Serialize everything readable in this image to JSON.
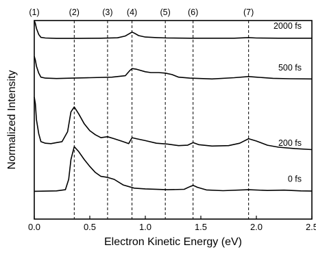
{
  "chart_data": {
    "type": "line",
    "xlabel": "Electron Kinetic Energy (eV)",
    "ylabel": "Normalized Intensity",
    "xlim": [
      0.0,
      2.5
    ],
    "x_ticks": [
      "0.0",
      "0.5",
      "1.0",
      "1.5",
      "2.0",
      "2.5"
    ],
    "x_tick_values": [
      0.0,
      0.5,
      1.0,
      1.5,
      2.0,
      2.5
    ],
    "y_ticks_shown": false,
    "grid": false,
    "peak_markers": [
      {
        "label": "(1)",
        "x": 0.0
      },
      {
        "label": "(2)",
        "x": 0.36
      },
      {
        "label": "(3)",
        "x": 0.66
      },
      {
        "label": "(4)",
        "x": 0.88
      },
      {
        "label": "(5)",
        "x": 1.18
      },
      {
        "label": "(6)",
        "x": 1.43
      },
      {
        "label": "(7)",
        "x": 1.93
      }
    ],
    "series": [
      {
        "name": "2000 fs",
        "baseline": 0.91,
        "points": [
          [
            0.0,
            1.0
          ],
          [
            0.01,
            0.985
          ],
          [
            0.02,
            0.96
          ],
          [
            0.04,
            0.93
          ],
          [
            0.06,
            0.915
          ],
          [
            0.1,
            0.912
          ],
          [
            0.2,
            0.91
          ],
          [
            0.4,
            0.91
          ],
          [
            0.6,
            0.911
          ],
          [
            0.75,
            0.913
          ],
          [
            0.82,
            0.922
          ],
          [
            0.86,
            0.935
          ],
          [
            0.88,
            0.942
          ],
          [
            0.9,
            0.937
          ],
          [
            0.94,
            0.924
          ],
          [
            1.0,
            0.917
          ],
          [
            1.1,
            0.914
          ],
          [
            1.2,
            0.912
          ],
          [
            1.4,
            0.911
          ],
          [
            1.6,
            0.911
          ],
          [
            1.8,
            0.911
          ],
          [
            1.93,
            0.914
          ],
          [
            2.0,
            0.912
          ],
          [
            2.2,
            0.911
          ],
          [
            2.5,
            0.911
          ]
        ]
      },
      {
        "name": "500 fs",
        "baseline": 0.7,
        "points": [
          [
            0.0,
            0.82
          ],
          [
            0.01,
            0.8
          ],
          [
            0.02,
            0.77
          ],
          [
            0.04,
            0.735
          ],
          [
            0.06,
            0.715
          ],
          [
            0.1,
            0.71
          ],
          [
            0.2,
            0.708
          ],
          [
            0.35,
            0.71
          ],
          [
            0.5,
            0.712
          ],
          [
            0.7,
            0.715
          ],
          [
            0.82,
            0.722
          ],
          [
            0.86,
            0.748
          ],
          [
            0.88,
            0.758
          ],
          [
            0.92,
            0.755
          ],
          [
            1.0,
            0.742
          ],
          [
            1.05,
            0.738
          ],
          [
            1.12,
            0.738
          ],
          [
            1.18,
            0.735
          ],
          [
            1.24,
            0.728
          ],
          [
            1.3,
            0.715
          ],
          [
            1.4,
            0.71
          ],
          [
            1.6,
            0.706
          ],
          [
            1.8,
            0.712
          ],
          [
            1.93,
            0.718
          ],
          [
            2.0,
            0.715
          ],
          [
            2.15,
            0.709
          ],
          [
            2.3,
            0.707
          ],
          [
            2.5,
            0.706
          ]
        ]
      },
      {
        "name": "200 fs",
        "baseline": 0.32,
        "points": [
          [
            0.0,
            0.615
          ],
          [
            0.01,
            0.58
          ],
          [
            0.02,
            0.5
          ],
          [
            0.04,
            0.43
          ],
          [
            0.06,
            0.39
          ],
          [
            0.1,
            0.382
          ],
          [
            0.15,
            0.38
          ],
          [
            0.2,
            0.385
          ],
          [
            0.25,
            0.39
          ],
          [
            0.3,
            0.44
          ],
          [
            0.33,
            0.54
          ],
          [
            0.36,
            0.565
          ],
          [
            0.4,
            0.53
          ],
          [
            0.45,
            0.48
          ],
          [
            0.5,
            0.445
          ],
          [
            0.55,
            0.425
          ],
          [
            0.6,
            0.41
          ],
          [
            0.66,
            0.415
          ],
          [
            0.72,
            0.405
          ],
          [
            0.8,
            0.39
          ],
          [
            0.85,
            0.38
          ],
          [
            0.88,
            0.41
          ],
          [
            0.92,
            0.405
          ],
          [
            1.0,
            0.395
          ],
          [
            1.1,
            0.382
          ],
          [
            1.2,
            0.378
          ],
          [
            1.3,
            0.37
          ],
          [
            1.38,
            0.372
          ],
          [
            1.43,
            0.385
          ],
          [
            1.48,
            0.375
          ],
          [
            1.6,
            0.368
          ],
          [
            1.75,
            0.37
          ],
          [
            1.85,
            0.382
          ],
          [
            1.93,
            0.405
          ],
          [
            2.0,
            0.393
          ],
          [
            2.1,
            0.372
          ],
          [
            2.2,
            0.362
          ],
          [
            2.35,
            0.355
          ],
          [
            2.5,
            0.35
          ]
        ]
      },
      {
        "name": "0 fs",
        "baseline": 0.14,
        "points": [
          [
            0.0,
            0.14
          ],
          [
            0.2,
            0.142
          ],
          [
            0.28,
            0.148
          ],
          [
            0.31,
            0.2
          ],
          [
            0.33,
            0.3
          ],
          [
            0.36,
            0.365
          ],
          [
            0.4,
            0.34
          ],
          [
            0.45,
            0.3
          ],
          [
            0.5,
            0.265
          ],
          [
            0.55,
            0.235
          ],
          [
            0.6,
            0.215
          ],
          [
            0.66,
            0.21
          ],
          [
            0.72,
            0.2
          ],
          [
            0.8,
            0.172
          ],
          [
            0.9,
            0.156
          ],
          [
            1.0,
            0.152
          ],
          [
            1.2,
            0.148
          ],
          [
            1.35,
            0.15
          ],
          [
            1.4,
            0.163
          ],
          [
            1.43,
            0.17
          ],
          [
            1.47,
            0.16
          ],
          [
            1.55,
            0.147
          ],
          [
            1.7,
            0.143
          ],
          [
            1.93,
            0.148
          ],
          [
            2.1,
            0.144
          ],
          [
            2.25,
            0.146
          ],
          [
            2.4,
            0.142
          ],
          [
            2.5,
            0.141
          ]
        ]
      }
    ]
  }
}
